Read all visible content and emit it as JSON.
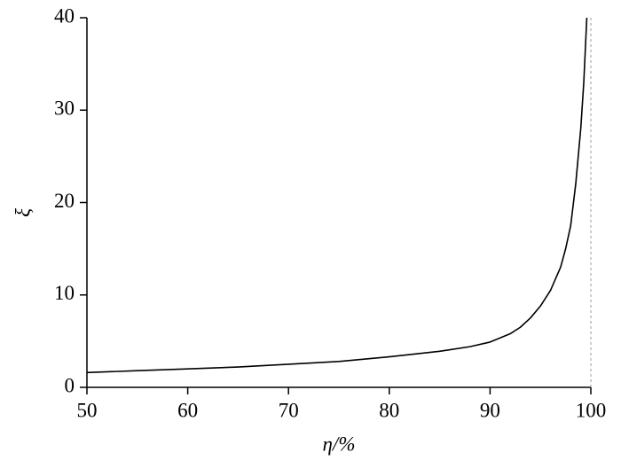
{
  "chart_data": {
    "type": "line",
    "x_label": "η/%",
    "y_label": "ξ",
    "series": [
      {
        "name": "ξ",
        "color": "#000000",
        "x": [
          50,
          55,
          60,
          65,
          70,
          75,
          80,
          85,
          88,
          90,
          92,
          93,
          94,
          95,
          96,
          97,
          97.5,
          98,
          98.5,
          99,
          99.3,
          99.6
        ],
        "values": [
          1.6,
          1.8,
          2.0,
          2.2,
          2.5,
          2.8,
          3.3,
          3.9,
          4.4,
          4.9,
          5.8,
          6.5,
          7.5,
          8.8,
          10.5,
          13,
          15,
          17.5,
          22,
          28,
          33,
          40
        ]
      }
    ],
    "xlim": [
      50,
      100
    ],
    "xticks": [
      50,
      60,
      70,
      80,
      90,
      100
    ],
    "ylim": [
      0,
      40
    ],
    "yticks": [
      0,
      10,
      20,
      30,
      40
    ],
    "reference_line_x": 100,
    "reference_line_color": "#999999"
  }
}
